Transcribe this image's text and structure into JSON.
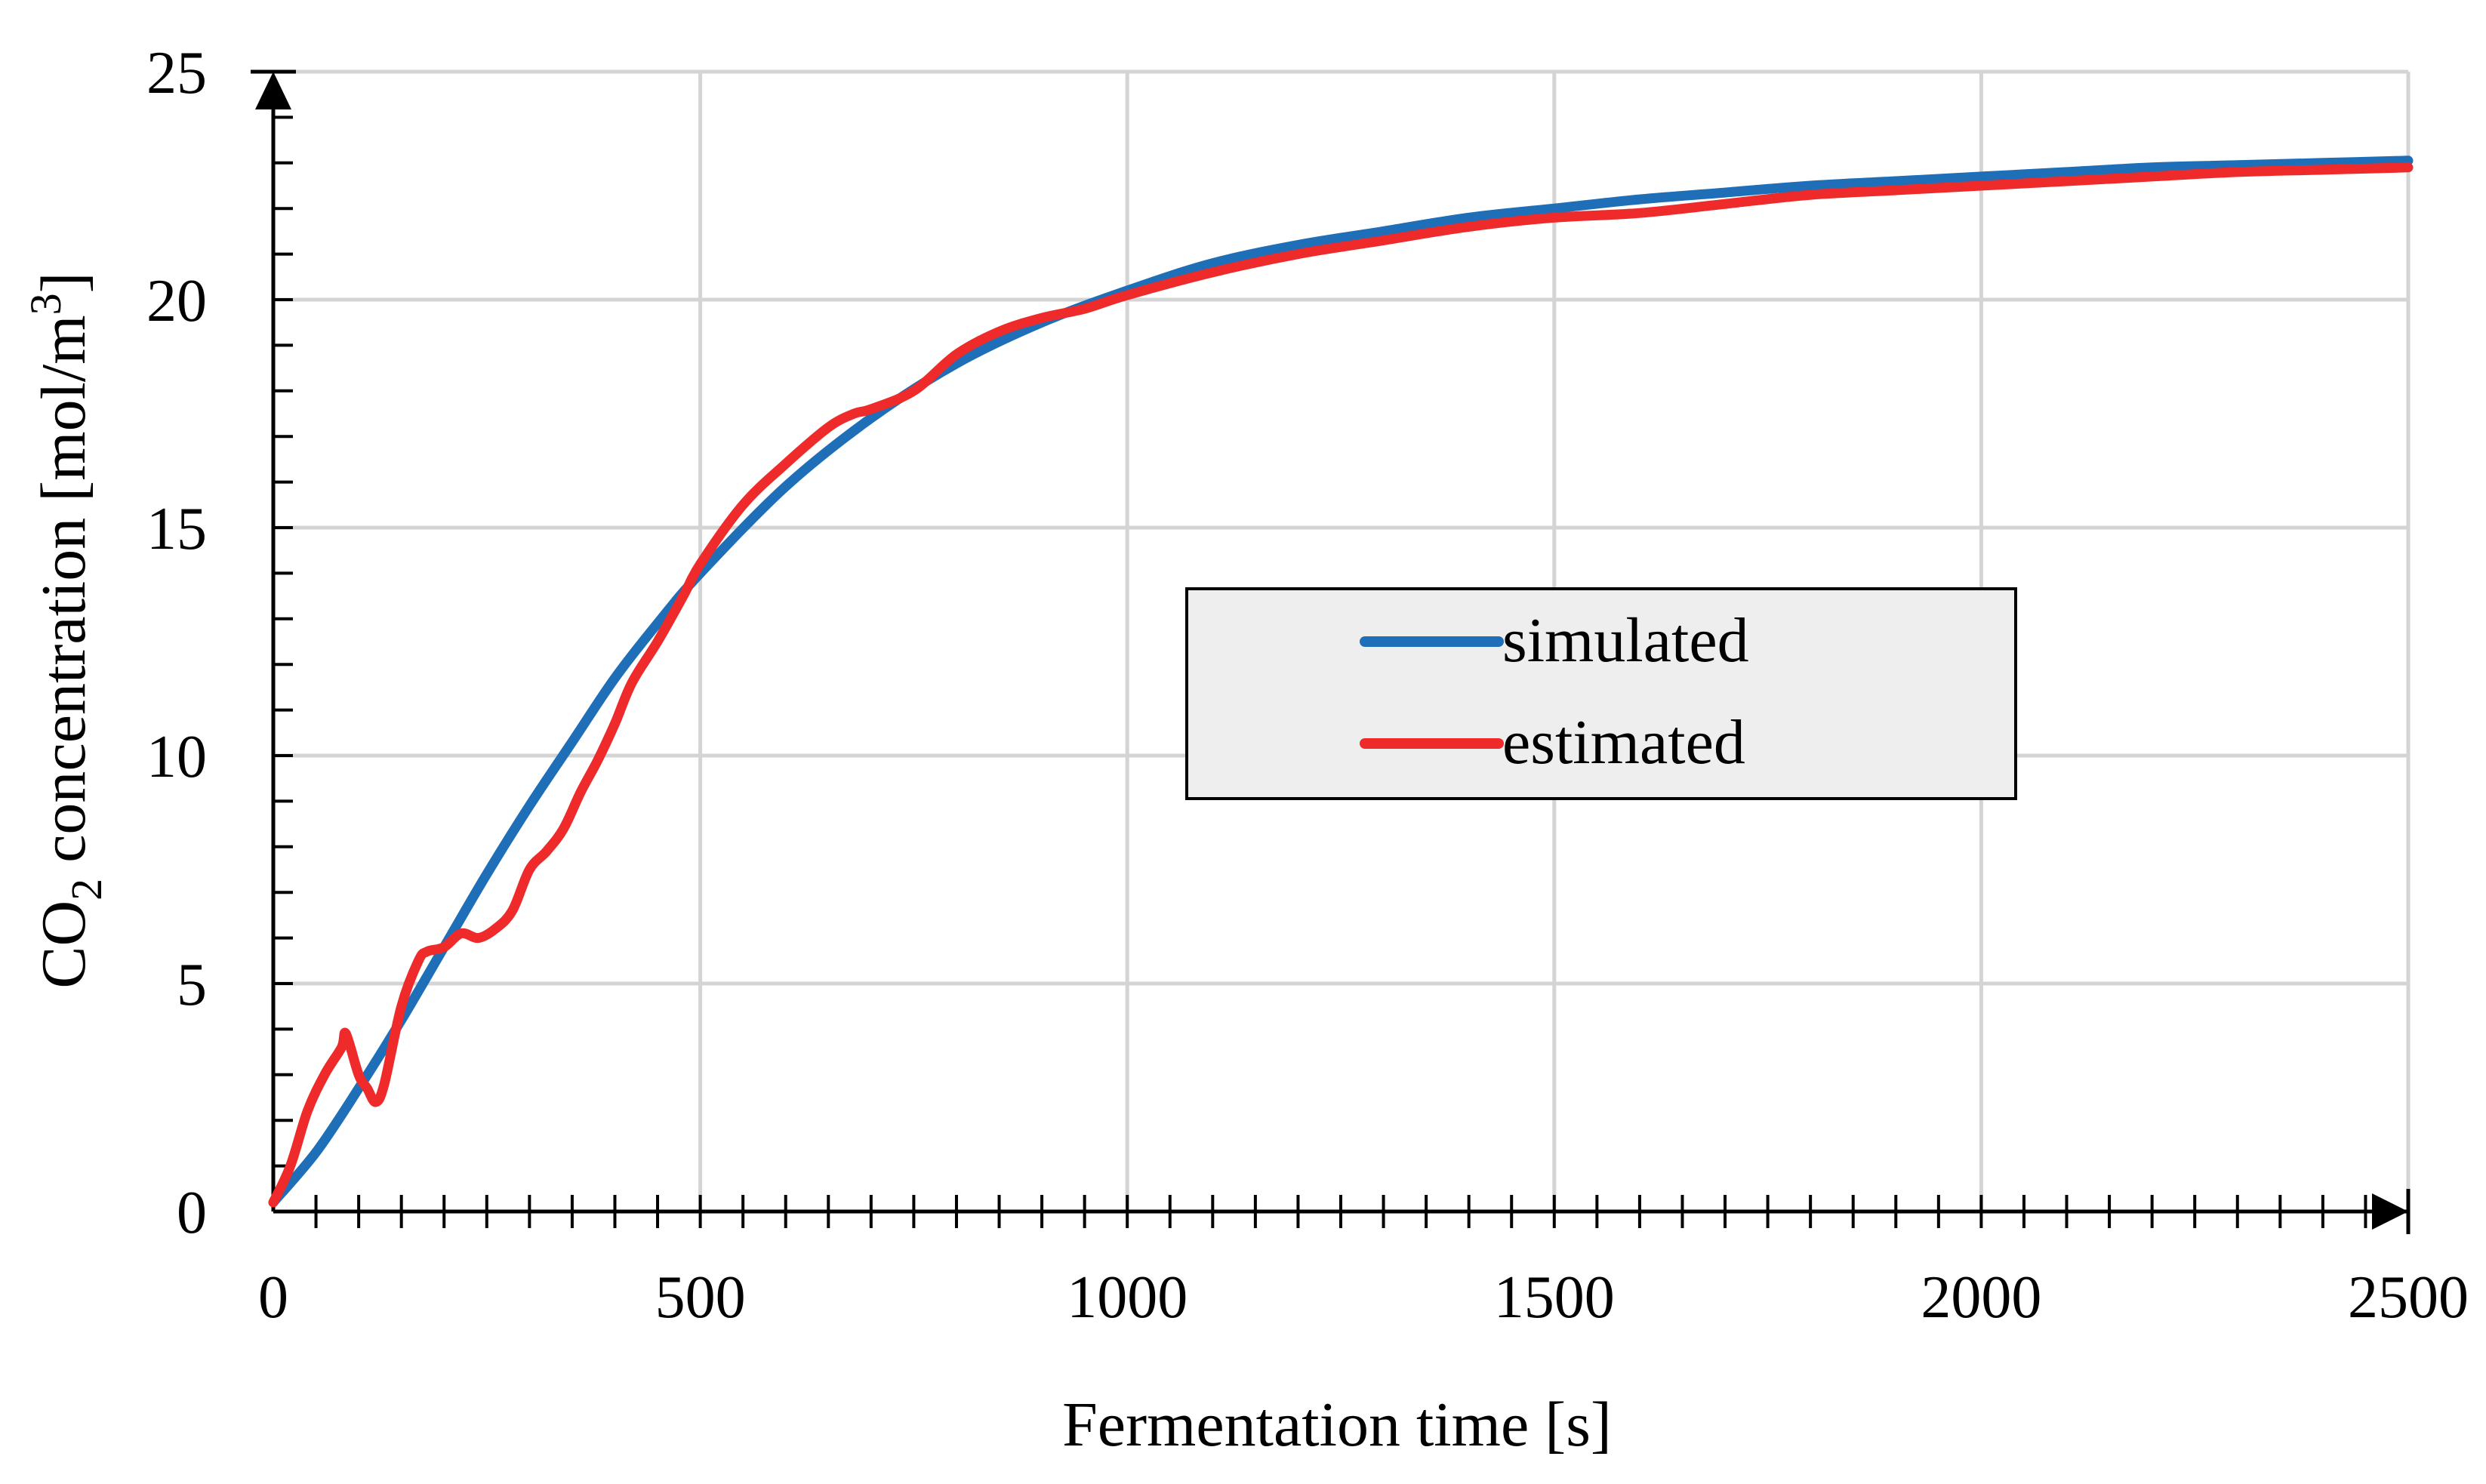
{
  "chart_data": {
    "type": "line",
    "title": "",
    "xlabel": "Fermentation time [s]",
    "ylabel_main": "CO",
    "ylabel_sub": "2",
    "ylabel_rest": " concentration [mol/m",
    "ylabel_sup": "3",
    "ylabel_close": "]",
    "xlim": [
      0,
      2500
    ],
    "ylim": [
      0,
      25
    ],
    "xticks": [
      0,
      500,
      1000,
      1500,
      2000,
      2500
    ],
    "yticks": [
      0,
      5,
      10,
      15,
      20,
      25
    ],
    "grid": true,
    "legend_position": "center-right",
    "series": [
      {
        "name": "simulated",
        "color": "#1f6fb8",
        "x": [
          0,
          50,
          100,
          150,
          200,
          250,
          300,
          350,
          400,
          450,
          500,
          600,
          700,
          800,
          900,
          1000,
          1100,
          1200,
          1300,
          1400,
          1500,
          1600,
          1700,
          1800,
          1900,
          2000,
          2100,
          2200,
          2300,
          2400,
          2500
        ],
        "y": [
          0.2,
          1.3,
          2.7,
          4.2,
          5.8,
          7.4,
          8.9,
          10.3,
          11.7,
          12.9,
          14.0,
          15.9,
          17.4,
          18.6,
          19.5,
          20.2,
          20.8,
          21.2,
          21.5,
          21.8,
          22.0,
          22.2,
          22.35,
          22.5,
          22.6,
          22.7,
          22.8,
          22.9,
          22.95,
          23.0,
          23.05
        ]
      },
      {
        "name": "estimated",
        "color": "#ee2a2a",
        "x": [
          0,
          20,
          40,
          60,
          80,
          85,
          100,
          110,
          120,
          130,
          150,
          170,
          180,
          200,
          220,
          240,
          260,
          280,
          300,
          320,
          340,
          360,
          380,
          400,
          420,
          450,
          480,
          500,
          550,
          600,
          650,
          680,
          700,
          750,
          800,
          850,
          900,
          950,
          1000,
          1100,
          1200,
          1300,
          1400,
          1500,
          1600,
          1700,
          1800,
          1900,
          2000,
          2100,
          2200,
          2300,
          2400,
          2500
        ],
        "y": [
          0.2,
          1.0,
          2.2,
          3.0,
          3.6,
          3.9,
          3.0,
          2.7,
          2.4,
          2.8,
          4.5,
          5.5,
          5.7,
          5.8,
          6.1,
          6.0,
          6.2,
          6.6,
          7.5,
          7.9,
          8.4,
          9.2,
          9.9,
          10.7,
          11.6,
          12.5,
          13.5,
          14.2,
          15.5,
          16.4,
          17.2,
          17.5,
          17.6,
          18.0,
          18.8,
          19.3,
          19.6,
          19.8,
          20.1,
          20.6,
          21.0,
          21.3,
          21.6,
          21.8,
          21.9,
          22.1,
          22.3,
          22.4,
          22.5,
          22.6,
          22.7,
          22.8,
          22.85,
          22.9
        ]
      }
    ]
  }
}
